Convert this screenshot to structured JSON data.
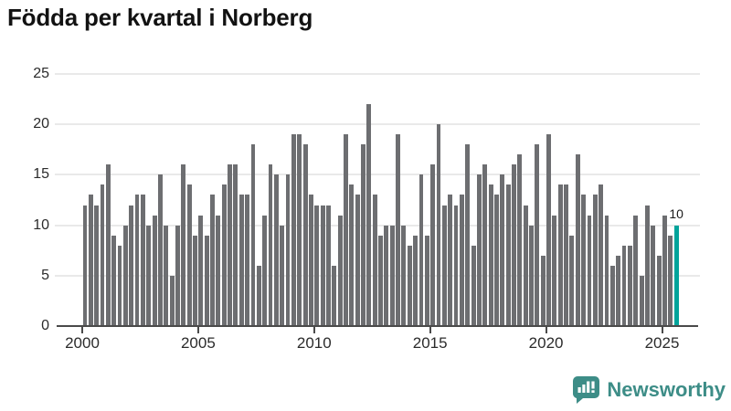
{
  "header": {
    "title": "Födda per kvartal i Norberg"
  },
  "chart_data": {
    "type": "bar",
    "title": "Födda per kvartal i Norberg",
    "x_axis": "quarters",
    "start": {
      "year": 2000,
      "quarter": 1
    },
    "end": {
      "year": 2025,
      "quarter": 3
    },
    "x_tick_labels": [
      "2000",
      "2005",
      "2010",
      "2015",
      "2020",
      "2025"
    ],
    "x_tick_years": [
      2000,
      2005,
      2010,
      2015,
      2020,
      2025
    ],
    "y_ticks": [
      0,
      5,
      10,
      15,
      20,
      25
    ],
    "ylim": [
      0,
      25
    ],
    "grid": true,
    "legend": "none",
    "values": [
      12,
      13,
      12,
      14,
      16,
      9,
      8,
      10,
      12,
      13,
      13,
      10,
      11,
      15,
      10,
      5,
      10,
      16,
      14,
      9,
      11,
      9,
      13,
      11,
      14,
      16,
      16,
      13,
      13,
      18,
      6,
      11,
      16,
      15,
      10,
      15,
      19,
      19,
      18,
      13,
      12,
      12,
      12,
      6,
      11,
      19,
      14,
      13,
      18,
      22,
      13,
      9,
      10,
      10,
      19,
      10,
      8,
      9,
      15,
      9,
      16,
      20,
      12,
      13,
      12,
      13,
      18,
      8,
      15,
      16,
      14,
      13,
      15,
      14,
      16,
      17,
      12,
      10,
      18,
      7,
      19,
      11,
      14,
      14,
      9,
      17,
      13,
      11,
      13,
      14,
      11,
      6,
      7,
      8,
      8,
      11,
      5,
      12,
      10,
      7,
      11,
      9,
      10
    ],
    "highlight_last": {
      "label": "10",
      "value": 10
    }
  },
  "colors": {
    "bar": "#6d6e71",
    "highlight": "#00a49b",
    "grid": "#e9e9e9",
    "axis": "#4a4a4a",
    "tick_text": "#2b2b2b",
    "title_text": "#121212",
    "brand": "#3d8d87"
  },
  "branding": {
    "name": "Newsworthy",
    "icon": "newsworthy-speech-bubble-bar-chart-icon"
  }
}
